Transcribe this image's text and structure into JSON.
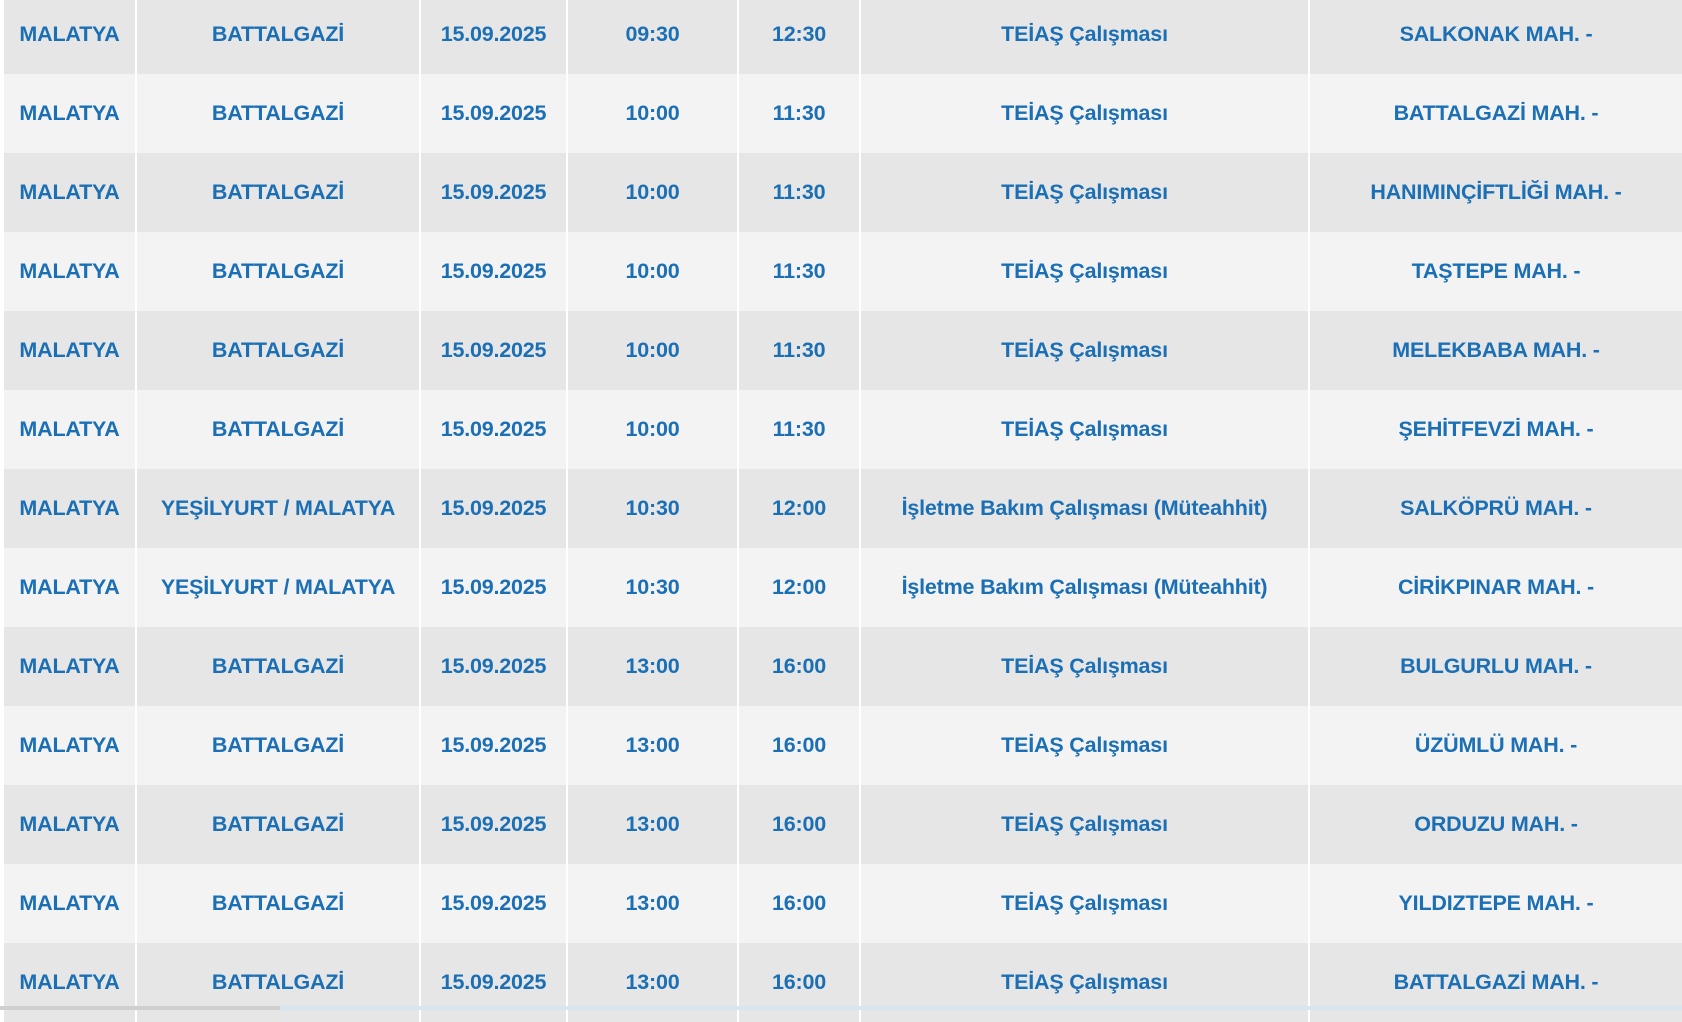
{
  "colors": {
    "text": "#1b6fb5",
    "row_odd": "#e6e6e6",
    "row_even": "#f3f3f3"
  },
  "rows": [
    [
      "MALATYA",
      "BATTALGAZİ",
      "15.09.2025",
      "09:30",
      "12:30",
      "TEİAŞ Çalışması",
      "SALKONAK MAH. -"
    ],
    [
      "MALATYA",
      "BATTALGAZİ",
      "15.09.2025",
      "10:00",
      "11:30",
      "TEİAŞ Çalışması",
      "BATTALGAZİ MAH. -"
    ],
    [
      "MALATYA",
      "BATTALGAZİ",
      "15.09.2025",
      "10:00",
      "11:30",
      "TEİAŞ Çalışması",
      "HANIMINÇİFTLİĞİ MAH. -"
    ],
    [
      "MALATYA",
      "BATTALGAZİ",
      "15.09.2025",
      "10:00",
      "11:30",
      "TEİAŞ Çalışması",
      "TAŞTEPE MAH. -"
    ],
    [
      "MALATYA",
      "BATTALGAZİ",
      "15.09.2025",
      "10:00",
      "11:30",
      "TEİAŞ Çalışması",
      "MELEKBABA MAH. -"
    ],
    [
      "MALATYA",
      "BATTALGAZİ",
      "15.09.2025",
      "10:00",
      "11:30",
      "TEİAŞ Çalışması",
      "ŞEHİTFEVZİ MAH. -"
    ],
    [
      "MALATYA",
      "YEŞİLYURT / MALATYA",
      "15.09.2025",
      "10:30",
      "12:00",
      "İşletme Bakım Çalışması (Müteahhit)",
      "SALKÖPRÜ MAH. -"
    ],
    [
      "MALATYA",
      "YEŞİLYURT / MALATYA",
      "15.09.2025",
      "10:30",
      "12:00",
      "İşletme Bakım Çalışması (Müteahhit)",
      "CİRİKPINAR MAH. -"
    ],
    [
      "MALATYA",
      "BATTALGAZİ",
      "15.09.2025",
      "13:00",
      "16:00",
      "TEİAŞ Çalışması",
      "BULGURLU MAH. -"
    ],
    [
      "MALATYA",
      "BATTALGAZİ",
      "15.09.2025",
      "13:00",
      "16:00",
      "TEİAŞ Çalışması",
      "ÜZÜMLÜ MAH. -"
    ],
    [
      "MALATYA",
      "BATTALGAZİ",
      "15.09.2025",
      "13:00",
      "16:00",
      "TEİAŞ Çalışması",
      "ORDUZU MAH. -"
    ],
    [
      "MALATYA",
      "BATTALGAZİ",
      "15.09.2025",
      "13:00",
      "16:00",
      "TEİAŞ Çalışması",
      "YILDIZTEPE MAH. -"
    ],
    [
      "MALATYA",
      "BATTALGAZİ",
      "15.09.2025",
      "13:00",
      "16:00",
      "TEİAŞ Çalışması",
      "BATTALGAZİ MAH. -"
    ]
  ]
}
